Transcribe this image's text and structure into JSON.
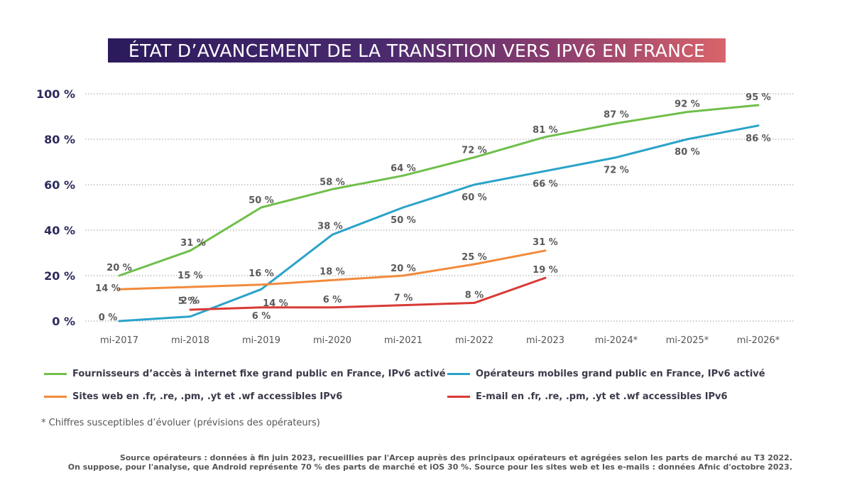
{
  "title": "ÉTAT D’AVANCEMENT DE LA TRANSITION VERS IPV6 EN FRANCE",
  "chart_data": {
    "type": "line",
    "categories": [
      "mi-2017",
      "mi-2018",
      "mi-2019",
      "mi-2020",
      "mi-2021",
      "mi-2022",
      "mi-2023",
      "mi-2024*",
      "mi-2025*",
      "mi-2026*"
    ],
    "y_ticks": [
      "0 %",
      "20 %",
      "40 %",
      "60 %",
      "80 %",
      "100 %"
    ],
    "ylim": [
      0,
      100
    ],
    "grid": "horizontal dotted",
    "series": [
      {
        "name": "Fournisseurs d’accès à internet fixe grand public en France, IPv6 activé",
        "color": "#6fbf4a",
        "values": [
          20,
          31,
          50,
          58,
          64,
          72,
          81,
          87,
          92,
          95
        ],
        "labels": [
          "20 %",
          "31 %",
          "50 %",
          "58 %",
          "64 %",
          "72 %",
          "81 %",
          "87 %",
          "92 %",
          "95 %"
        ]
      },
      {
        "name": "Opérateurs mobiles grand public en France, IPv6 activé",
        "color": "#2aa3c8",
        "values": [
          0,
          2,
          14,
          38,
          50,
          60,
          66,
          72,
          80,
          86
        ],
        "labels": [
          "0 %",
          "2 %",
          "14 %",
          "38 %",
          "50 %",
          "60 %",
          "66 %",
          "72 %",
          "80 %",
          "86 %"
        ]
      },
      {
        "name": "Sites web en .fr, .re, .pm, .yt et .wf accessibles IPv6",
        "color": "#f28a3c",
        "values": [
          14,
          15,
          16,
          18,
          20,
          25,
          31,
          null,
          null,
          null
        ],
        "labels": [
          "14 %",
          "15 %",
          "16 %",
          "18 %",
          "20 %",
          "25 %",
          "31 %",
          null,
          null,
          null
        ]
      },
      {
        "name": "E-mail en .fr, .re, .pm, .yt et .wf accessibles IPv6",
        "color": "#d93a36",
        "values": [
          null,
          5,
          6,
          6,
          7,
          8,
          19,
          null,
          null,
          null
        ],
        "labels": [
          null,
          "5 %",
          "6 %",
          "6 %",
          "7 %",
          "8 %",
          "19 %",
          null,
          null,
          null
        ]
      }
    ]
  },
  "footnote": "* Chiffres susceptibles d’évoluer (prévisions des opérateurs)",
  "source": [
    "Source opérateurs : données à fin juin 2023, recueillies par l'Arcep auprès des principaux opérateurs et agrégées selon les parts de marché au T3 2022.",
    "On suppose, pour l'analyse, que Android représente 70 % des parts de marché et iOS 30 %. Source pour les sites web et les e-mails : données Afnic d'octobre 2023."
  ]
}
